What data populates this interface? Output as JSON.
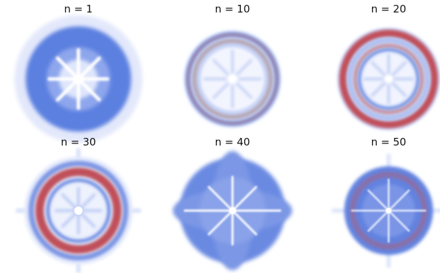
{
  "figure": {
    "panels": [
      {
        "title": "n = 1"
      },
      {
        "title": "n = 10"
      },
      {
        "title": "n = 20"
      },
      {
        "title": "n = 30"
      },
      {
        "title": "n = 40"
      },
      {
        "title": "n = 50"
      }
    ]
  },
  "colors": {
    "blue": "#5b7fe0",
    "light_blue": "#a9bcf2",
    "pale_blue": "#dde5fb",
    "red": "#c0505a",
    "white": "#ffffff"
  }
}
